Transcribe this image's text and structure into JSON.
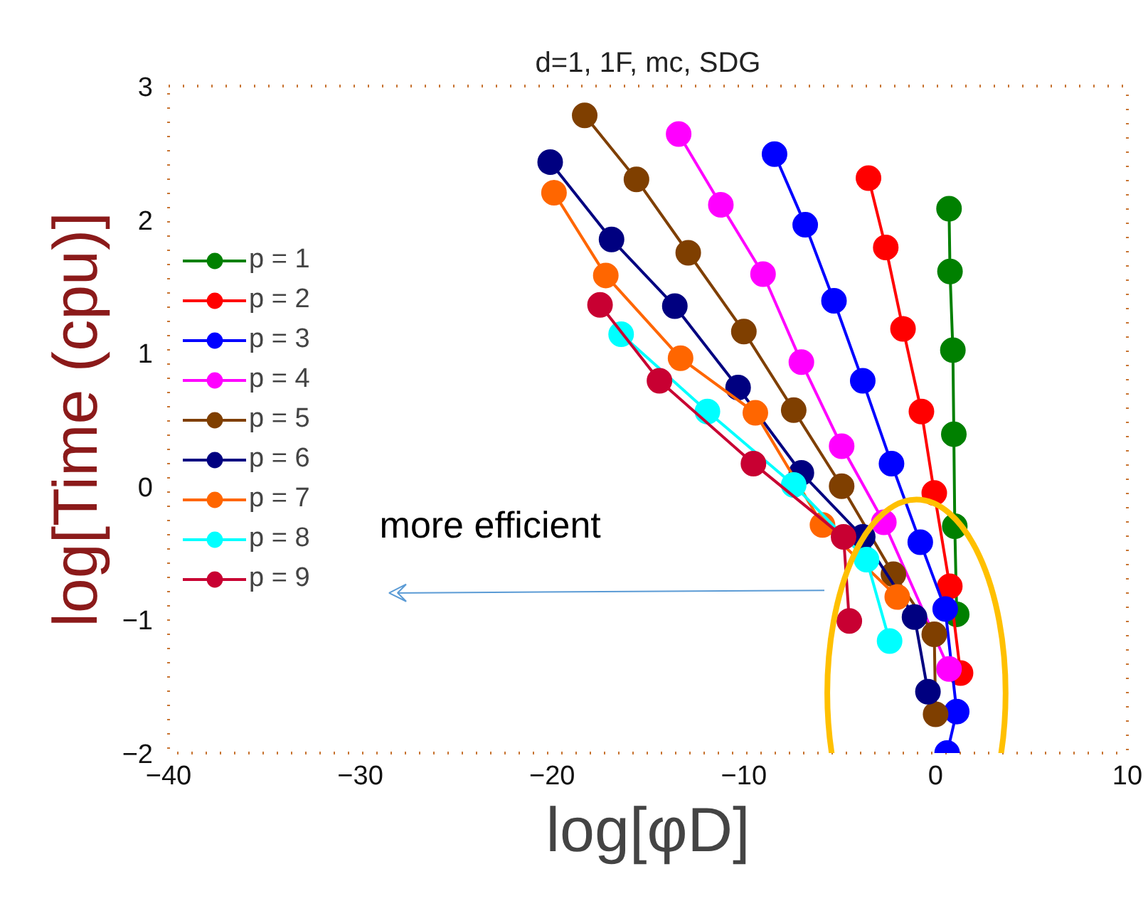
{
  "chart_data": {
    "type": "line",
    "title": "d=1, 1F, mc, SDG",
    "xlabel": "log[φD]",
    "ylabel": "log[Time (cpu)]",
    "xlim": [
      -40,
      10
    ],
    "ylim": [
      -2,
      3
    ],
    "xticks": [
      -40,
      -30,
      -20,
      -10,
      0,
      10
    ],
    "yticks": [
      -2,
      -1,
      0,
      1,
      2,
      3
    ],
    "grid": false,
    "legend": "left",
    "marker": "circle",
    "line_style": "solid",
    "annotations": [
      "more efficient"
    ],
    "series": [
      {
        "name": "p = 1",
        "color": "#008000",
        "x": [
          0.7,
          0.75,
          0.9,
          0.95,
          1.0,
          1.1
        ],
        "values": [
          2.08,
          1.61,
          1.02,
          0.39,
          -0.3,
          -0.96
        ]
      },
      {
        "name": "p = 2",
        "color": "#ff0000",
        "x": [
          -3.5,
          -2.6,
          -1.7,
          -0.74,
          -0.07,
          0.74,
          1.3
        ],
        "values": [
          2.31,
          1.79,
          1.18,
          0.56,
          -0.05,
          -0.75,
          -1.4
        ]
      },
      {
        "name": "p = 3",
        "color": "#0000ff",
        "x": [
          -8.4,
          -6.8,
          -5.3,
          -3.8,
          -2.3,
          -0.8,
          0.5,
          1.1,
          0.6
        ],
        "values": [
          2.49,
          1.96,
          1.39,
          0.79,
          0.17,
          -0.42,
          -0.92,
          -1.69,
          -2.0
        ]
      },
      {
        "name": "p = 4",
        "color": "#ff00ff",
        "x": [
          -13.4,
          -11.2,
          -9.0,
          -7.0,
          -4.9,
          -2.7,
          0.7
        ],
        "values": [
          2.64,
          2.11,
          1.59,
          0.93,
          0.3,
          -0.27,
          -1.37
        ]
      },
      {
        "name": "p = 5",
        "color": "#7f3f00",
        "x": [
          -18.3,
          -15.6,
          -12.9,
          -10.0,
          -7.4,
          -4.9,
          -2.2,
          -0.07,
          0.0
        ],
        "values": [
          2.78,
          2.3,
          1.75,
          1.16,
          0.57,
          0.0,
          -0.66,
          -1.11,
          -1.71
        ]
      },
      {
        "name": "p = 6",
        "color": "#000080",
        "x": [
          -20.1,
          -16.9,
          -13.6,
          -10.3,
          -7.0,
          -3.8,
          -1.1,
          -0.4
        ],
        "values": [
          2.43,
          1.85,
          1.35,
          0.74,
          0.1,
          -0.38,
          -0.98,
          -1.54
        ]
      },
      {
        "name": "p = 7",
        "color": "#ff6600",
        "x": [
          -19.9,
          -17.2,
          -13.3,
          -9.4,
          -5.9,
          -2.0
        ],
        "values": [
          2.2,
          1.58,
          0.96,
          0.55,
          -0.29,
          -0.83
        ]
      },
      {
        "name": "p = 8",
        "color": "#00ffff",
        "x": [
          -16.4,
          -11.9,
          -7.4,
          -3.6,
          -2.4
        ],
        "values": [
          1.14,
          0.56,
          0.01,
          -0.55,
          -1.16
        ]
      },
      {
        "name": "p = 9",
        "color": "#c80032",
        "x": [
          -17.5,
          -14.4,
          -9.5,
          -4.8,
          -4.5
        ],
        "values": [
          1.36,
          0.79,
          0.17,
          -0.38,
          -1.01
        ]
      }
    ]
  }
}
